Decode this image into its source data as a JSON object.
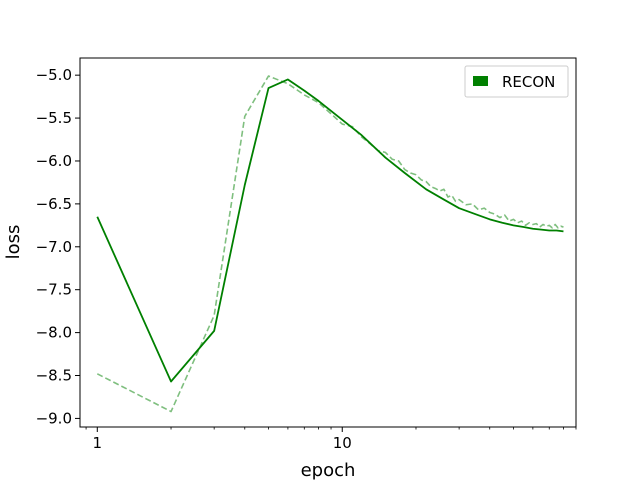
{
  "chart_data": {
    "type": "line",
    "title": "",
    "xlabel": "epoch",
    "ylabel": "loss",
    "xscale": "log",
    "xlim": [
      0.85,
      90
    ],
    "ylim": [
      -9.1,
      -4.8
    ],
    "x_ticks": [
      1,
      10
    ],
    "x_tick_labels": [
      "1",
      "10"
    ],
    "y_ticks": [
      -9.0,
      -8.5,
      -8.0,
      -7.5,
      -7.0,
      -6.5,
      -6.0,
      -5.5,
      -5.0
    ],
    "y_tick_labels": [
      "−9.0",
      "−8.5",
      "−8.0",
      "−7.5",
      "−7.0",
      "−6.5",
      "−6.0",
      "−5.5",
      "−5.0"
    ],
    "grid": false,
    "legend": {
      "placement": "top-right",
      "entries": [
        "RECON"
      ]
    },
    "series": [
      {
        "name": "RECON",
        "style": "solid",
        "color": "#008000",
        "x": [
          1,
          2,
          3,
          4,
          5,
          6,
          7,
          8,
          10,
          12,
          15,
          18,
          22,
          26,
          30,
          35,
          40,
          45,
          50,
          55,
          60,
          65,
          70,
          75,
          80
        ],
        "y": [
          -6.65,
          -8.57,
          -7.98,
          -6.28,
          -5.15,
          -5.05,
          -5.18,
          -5.3,
          -5.52,
          -5.7,
          -5.96,
          -6.14,
          -6.33,
          -6.45,
          -6.55,
          -6.62,
          -6.68,
          -6.72,
          -6.75,
          -6.77,
          -6.79,
          -6.8,
          -6.81,
          -6.81,
          -6.82
        ]
      },
      {
        "name": "",
        "style": "dashed",
        "color": "#7fbf7f",
        "x": [
          1,
          2,
          3,
          4,
          5,
          6,
          7,
          8,
          9,
          10,
          11,
          12,
          13,
          14,
          15,
          16,
          17,
          18,
          19,
          20,
          21,
          22,
          23,
          24,
          25,
          26,
          27,
          28,
          29,
          30,
          32,
          34,
          36,
          38,
          40,
          42,
          44,
          46,
          48,
          50,
          52,
          54,
          56,
          58,
          60,
          62,
          64,
          66,
          68,
          70,
          72,
          74,
          76,
          78,
          80
        ],
        "y": [
          -8.48,
          -8.92,
          -7.8,
          -5.48,
          -5.01,
          -5.1,
          -5.23,
          -5.32,
          -5.45,
          -5.57,
          -5.6,
          -5.72,
          -5.8,
          -5.88,
          -5.9,
          -5.98,
          -6.0,
          -6.1,
          -6.14,
          -6.16,
          -6.22,
          -6.24,
          -6.3,
          -6.32,
          -6.35,
          -6.33,
          -6.42,
          -6.4,
          -6.47,
          -6.45,
          -6.51,
          -6.5,
          -6.57,
          -6.55,
          -6.6,
          -6.62,
          -6.66,
          -6.63,
          -6.7,
          -6.68,
          -6.72,
          -6.7,
          -6.75,
          -6.72,
          -6.74,
          -6.73,
          -6.77,
          -6.74,
          -6.76,
          -6.75,
          -6.78,
          -6.74,
          -6.78,
          -6.76,
          -6.77
        ]
      }
    ]
  }
}
